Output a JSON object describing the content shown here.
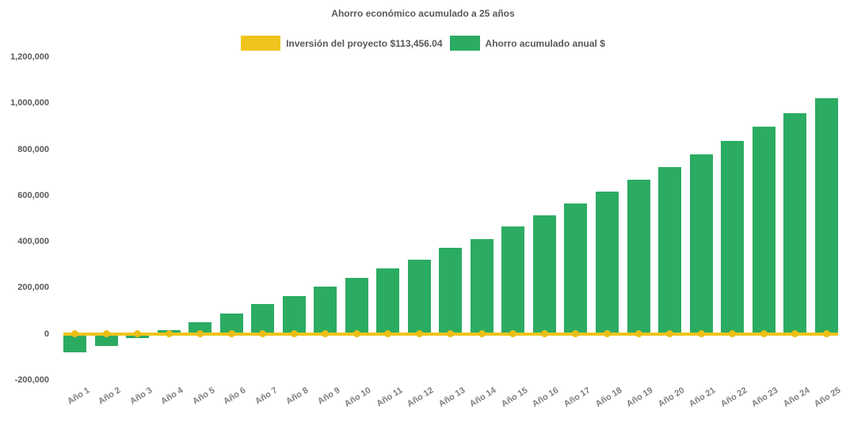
{
  "title": "Ahorro económico acumulado a 25 años",
  "legend": {
    "items": [
      {
        "label": "Inversión del proyecto $113,456.04",
        "color": "#F0C41C",
        "type": "line"
      },
      {
        "label": "Ahorro acumulado anual $",
        "color": "#2BAC62",
        "type": "bar"
      }
    ]
  },
  "chart_data": {
    "type": "bar",
    "title": "Ahorro económico acumulado a 25 años",
    "categories": [
      "Año 1",
      "Año 2",
      "Año 3",
      "Año 4",
      "Año 5",
      "Año 6",
      "Año 7",
      "Año 8",
      "Año 9",
      "Año 10",
      "Año 11",
      "Año 12",
      "Año 13",
      "Año 14",
      "Año 15",
      "Año 16",
      "Año 17",
      "Año 18",
      "Año 19",
      "Año 20",
      "Año 21",
      "Año 22",
      "Año 23",
      "Año 24",
      "Año 25"
    ],
    "series": [
      {
        "name": "Inversión del proyecto $113,456.04",
        "type": "line",
        "color": "#F0C41C",
        "marker_color": "#EBBE14",
        "investment_amount": "$113,456.04",
        "values": [
          0,
          0,
          0,
          0,
          0,
          0,
          0,
          0,
          0,
          0,
          0,
          0,
          0,
          0,
          0,
          0,
          0,
          0,
          0,
          0,
          0,
          0,
          0,
          0,
          0
        ]
      },
      {
        "name": "Ahorro acumulado anual $",
        "type": "bar",
        "color": "#2BAC62",
        "values": [
          -81000,
          -53000,
          -18000,
          17000,
          52000,
          87000,
          129000,
          165000,
          204000,
          241000,
          285000,
          322000,
          372000,
          412000,
          465000,
          513000,
          565000,
          618000,
          667000,
          724000,
          777000,
          836000,
          898000,
          958000,
          1020000
        ]
      }
    ],
    "xlabel": "",
    "ylabel": "",
    "ylim": [
      -200000,
      1200000
    ],
    "y_ticks": [
      1200000,
      1000000,
      800000,
      600000,
      400000,
      200000,
      0,
      -200000
    ],
    "y_tick_labels": [
      "1,200,000",
      "1,000,000",
      "800,000",
      "600,000",
      "400,000",
      "200,000",
      "0",
      "-200,000"
    ],
    "grid": false,
    "legend_position": "top",
    "colors": {
      "bar": "#2BAC62",
      "line": "#F0C41C",
      "title_text": "#595959",
      "y_axis_text": "#595959",
      "x_axis_text": "#7F7F7F",
      "background": "#FFFFFF"
    }
  }
}
